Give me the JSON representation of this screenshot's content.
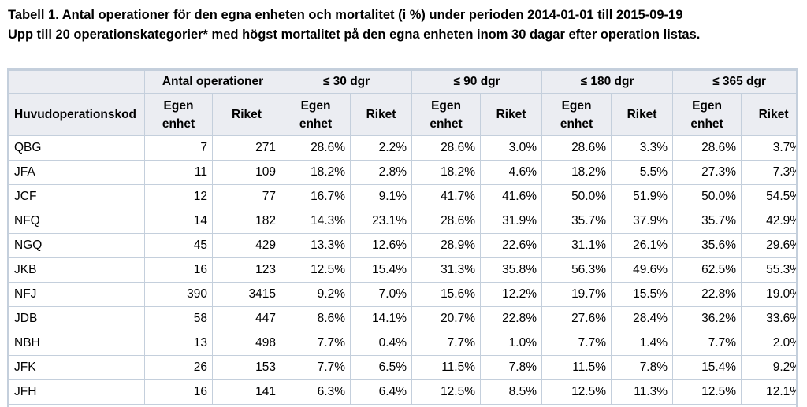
{
  "caption": {
    "line1": "Tabell 1. Antal operationer för den egna enheten och mortalitet (i %) under perioden 2014-01-01 till 2015-09-19",
    "line2": "Upp till 20 operationskategorier* med högst mortalitet på den egna enheten inom 30 dagar efter operation listas."
  },
  "table": {
    "group_headers": [
      "Antal operationer",
      "≤ 30 dgr",
      "≤ 90 dgr",
      "≤ 180 dgr",
      "≤ 365 dgr"
    ],
    "code_header": "Huvudoperationskod",
    "sub_headers": {
      "own": [
        "Egen",
        "enhet"
      ],
      "nation": "Riket"
    },
    "rows": [
      [
        "QBG",
        "7",
        "271",
        "28.6%",
        "2.2%",
        "28.6%",
        "3.0%",
        "28.6%",
        "3.3%",
        "28.6%",
        "3.7%"
      ],
      [
        "JFA",
        "11",
        "109",
        "18.2%",
        "2.8%",
        "18.2%",
        "4.6%",
        "18.2%",
        "5.5%",
        "27.3%",
        "7.3%"
      ],
      [
        "JCF",
        "12",
        "77",
        "16.7%",
        "9.1%",
        "41.7%",
        "41.6%",
        "50.0%",
        "51.9%",
        "50.0%",
        "54.5%"
      ],
      [
        "NFQ",
        "14",
        "182",
        "14.3%",
        "23.1%",
        "28.6%",
        "31.9%",
        "35.7%",
        "37.9%",
        "35.7%",
        "42.9%"
      ],
      [
        "NGQ",
        "45",
        "429",
        "13.3%",
        "12.6%",
        "28.9%",
        "22.6%",
        "31.1%",
        "26.1%",
        "35.6%",
        "29.6%"
      ],
      [
        "JKB",
        "16",
        "123",
        "12.5%",
        "15.4%",
        "31.3%",
        "35.8%",
        "56.3%",
        "49.6%",
        "62.5%",
        "55.3%"
      ],
      [
        "NFJ",
        "390",
        "3415",
        "9.2%",
        "7.0%",
        "15.6%",
        "12.2%",
        "19.7%",
        "15.5%",
        "22.8%",
        "19.0%"
      ],
      [
        "JDB",
        "58",
        "447",
        "8.6%",
        "14.1%",
        "20.7%",
        "22.8%",
        "27.6%",
        "28.4%",
        "36.2%",
        "33.6%"
      ],
      [
        "NBH",
        "13",
        "498",
        "7.7%",
        "0.4%",
        "7.7%",
        "1.0%",
        "7.7%",
        "1.4%",
        "7.7%",
        "2.0%"
      ],
      [
        "JFK",
        "26",
        "153",
        "7.7%",
        "6.5%",
        "11.5%",
        "7.8%",
        "11.5%",
        "7.8%",
        "15.4%",
        "9.2%"
      ],
      [
        "JFH",
        "16",
        "141",
        "6.3%",
        "6.4%",
        "12.5%",
        "8.5%",
        "12.5%",
        "11.3%",
        "12.5%",
        "12.1%"
      ]
    ]
  }
}
